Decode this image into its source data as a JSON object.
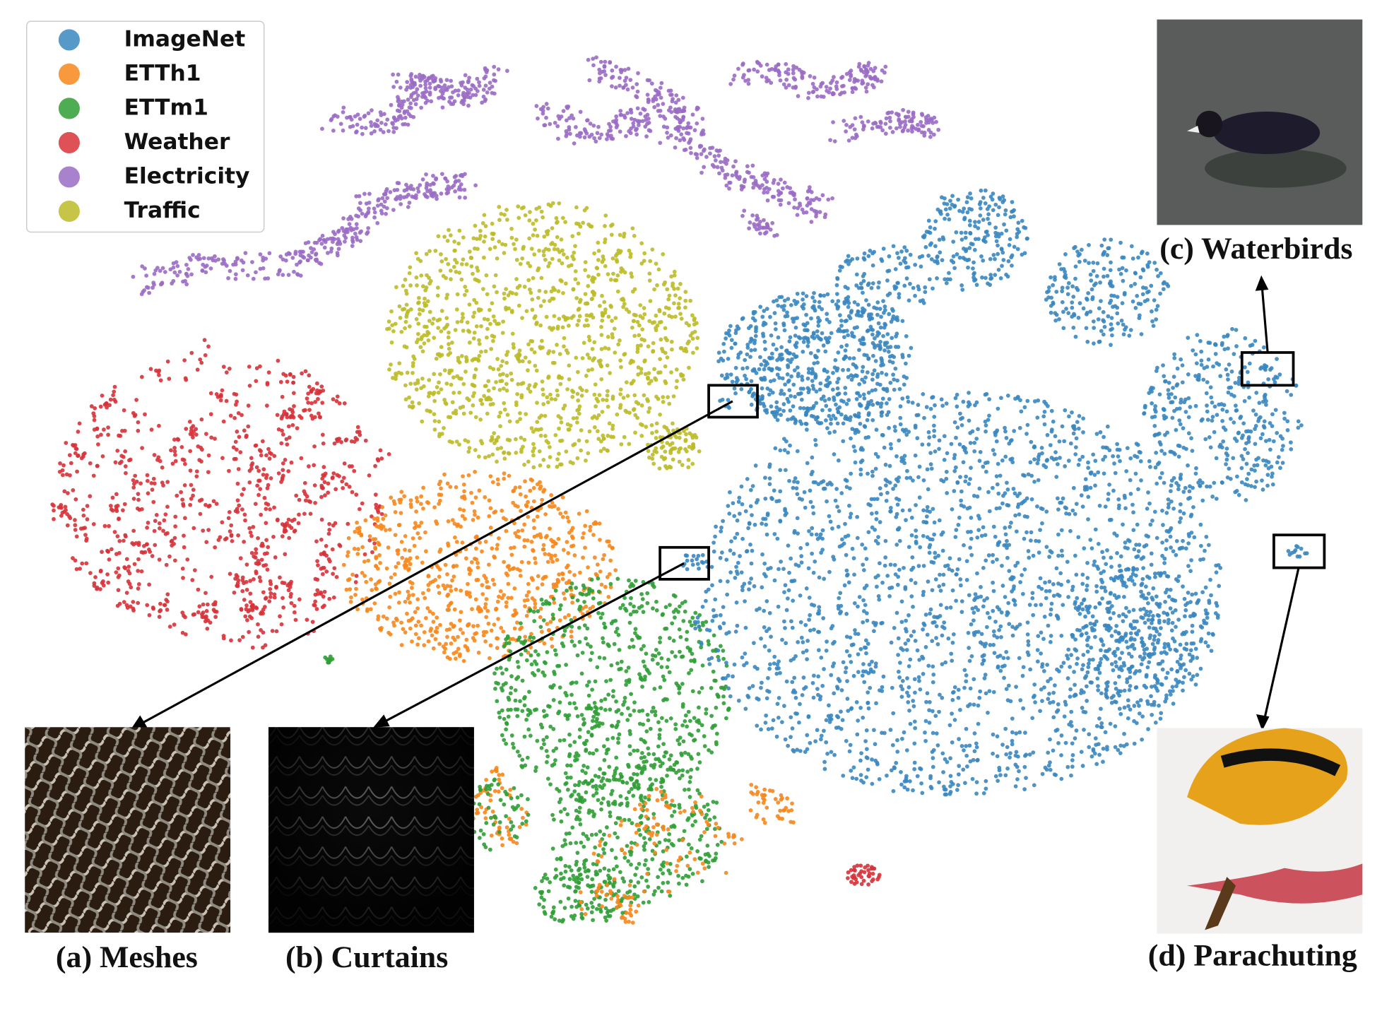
{
  "legend": [
    {
      "name": "ImageNet",
      "color": "#3a87c0"
    },
    {
      "name": "ETTh1",
      "color": "#f7871c"
    },
    {
      "name": "ETTm1",
      "color": "#2f9e35"
    },
    {
      "name": "Weather",
      "color": "#d7323a"
    },
    {
      "name": "Electricity",
      "color": "#9a6cc4"
    },
    {
      "name": "Traffic",
      "color": "#bcbb28"
    }
  ],
  "captions": {
    "a": "(a) Meshes",
    "b": "(b) Curtains",
    "c": "(c) Waterbirds",
    "d": "(d) Parachuting"
  }
}
